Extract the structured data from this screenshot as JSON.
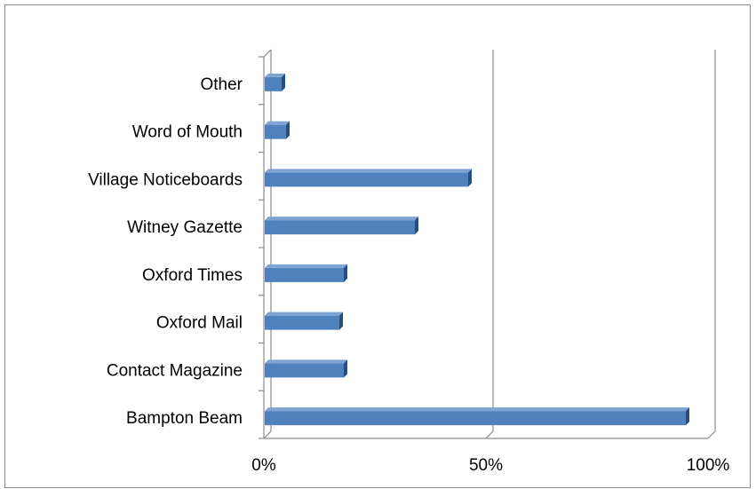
{
  "chart_data": {
    "type": "bar",
    "orientation": "horizontal",
    "style": "3d",
    "categories": [
      "Other",
      "Word of Mouth",
      "Village Noticeboards",
      "Witney Gazette",
      "Oxford Times",
      "Oxford Mail",
      "Contact Magazine",
      "Bampton Beam"
    ],
    "values": [
      0.04,
      0.05,
      0.46,
      0.34,
      0.18,
      0.17,
      0.18,
      0.95
    ],
    "xlim": [
      0,
      1
    ],
    "x_ticks": [
      0,
      0.5,
      1
    ],
    "x_tick_labels": [
      "0%",
      "50%",
      "100%"
    ],
    "grid": true,
    "legend": "none",
    "colors": {
      "bar_front": "#4f81bd",
      "bar_top": "#7ea3d4",
      "bar_side": "#2c4d75",
      "axis": "#8c8c8c",
      "gridline": "#8c8c8c"
    }
  }
}
